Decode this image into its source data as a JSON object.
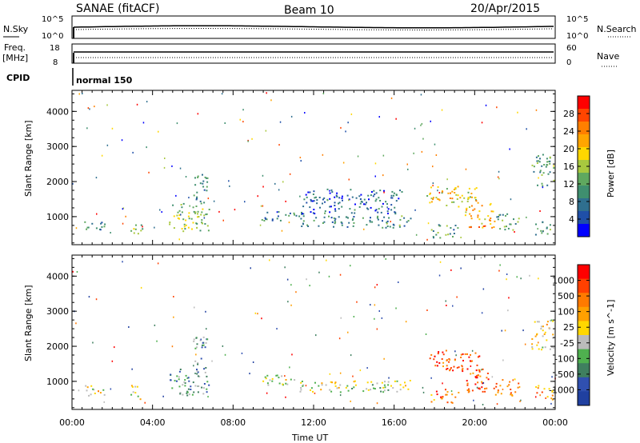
{
  "header": {
    "station": "SANAE (fitACF)",
    "beam": "Beam 10",
    "date": "20/Apr/2015"
  },
  "panels": {
    "noise": {
      "left_label": "N.Sky",
      "right_label": "N.Search",
      "left_ticks": [
        "10^5",
        "10^0"
      ],
      "right_ticks": [
        "10^5",
        "10^0"
      ]
    },
    "freq": {
      "left_label_1": "Freq.",
      "left_label_2": "[MHz]",
      "right_label": "Nave",
      "left_ticks": [
        "18",
        "8"
      ],
      "right_ticks": [
        "60",
        "0"
      ]
    },
    "cpid": {
      "label": "CPID",
      "mode": "normal 150"
    }
  },
  "axes": {
    "xlabel": "Time UT",
    "ylabel": "Slant Range [km]"
  },
  "colorbars": {
    "power": {
      "label": "Power [dB]",
      "ticks": [
        "28",
        "24",
        "20",
        "16",
        "12",
        "8",
        "4"
      ],
      "colors": [
        "#0000ff",
        "#1f4fa8",
        "#2f6f8f",
        "#3f8f6f",
        "#5fa85f",
        "#a8c83f",
        "#ffd700",
        "#ffa500",
        "#ff7f00",
        "#ff4500",
        "#ff0000"
      ]
    },
    "velocity": {
      "label": "Velocity [m s^-1]",
      "ticks": [
        "1000",
        "500",
        "100",
        "25",
        "-25",
        "-100",
        "-500",
        "-1000"
      ],
      "colors": [
        "#2040a0",
        "#3050b0",
        "#3f7f5f",
        "#4fb04f",
        "#bbbbbb",
        "#ffd700",
        "#ffa000",
        "#ff7a00",
        "#ff4000",
        "#ff0000"
      ]
    }
  },
  "chart_data": [
    {
      "type": "heatmap",
      "name": "Power",
      "title": "SANAE (fitACF)",
      "xlabel": "Time UT",
      "ylabel": "Slant Range [km]",
      "x_ticks": [
        "00:00",
        "04:00",
        "08:00",
        "12:00",
        "16:00",
        "20:00",
        "00:00"
      ],
      "y_ticks": [
        1000,
        2000,
        3000,
        4000
      ],
      "xlim_hours": [
        0,
        24
      ],
      "ylim_km": [
        200,
        4600
      ],
      "colorbar_label": "Power [dB]",
      "colorbar_ticks": [
        4,
        8,
        12,
        16,
        20,
        24,
        28
      ],
      "clim": [
        0,
        30
      ],
      "echo_regions": [
        {
          "t0": 0.4,
          "t1": 1.6,
          "r0": 600,
          "r1": 900,
          "level": 0.3
        },
        {
          "t0": 2.9,
          "t1": 3.5,
          "r0": 500,
          "r1": 900,
          "level": 0.45
        },
        {
          "t0": 4.8,
          "t1": 6.8,
          "r0": 600,
          "r1": 1400,
          "level": 0.45
        },
        {
          "t0": 6.0,
          "t1": 6.7,
          "r0": 1400,
          "r1": 2300,
          "level": 0.3
        },
        {
          "t0": 9.4,
          "t1": 11.4,
          "r0": 900,
          "r1": 1200,
          "level": 0.25
        },
        {
          "t0": 11.3,
          "t1": 16.8,
          "r0": 700,
          "r1": 1050,
          "level": 0.3
        },
        {
          "t0": 11.4,
          "t1": 16.4,
          "r0": 1100,
          "r1": 1800,
          "level": 0.2
        },
        {
          "t0": 17.6,
          "t1": 20.2,
          "r0": 1300,
          "r1": 1900,
          "level": 0.6
        },
        {
          "t0": 17.8,
          "t1": 19.2,
          "r0": 400,
          "r1": 800,
          "level": 0.35
        },
        {
          "t0": 19.5,
          "t1": 21.0,
          "r0": 700,
          "r1": 1400,
          "level": 0.7
        },
        {
          "t0": 21.0,
          "t1": 22.2,
          "r0": 600,
          "r1": 1100,
          "level": 0.35
        },
        {
          "t0": 22.8,
          "t1": 23.9,
          "r0": 1900,
          "r1": 2800,
          "level": 0.35
        },
        {
          "t0": 23.0,
          "t1": 23.9,
          "r0": 500,
          "r1": 900,
          "level": 0.35
        }
      ]
    },
    {
      "type": "heatmap",
      "name": "Velocity",
      "xlabel": "Time UT",
      "ylabel": "Slant Range [km]",
      "x_ticks": [
        "00:00",
        "04:00",
        "08:00",
        "12:00",
        "16:00",
        "20:00",
        "00:00"
      ],
      "y_ticks": [
        1000,
        2000,
        3000,
        4000
      ],
      "xlim_hours": [
        0,
        24
      ],
      "ylim_km": [
        200,
        4600
      ],
      "colorbar_label": "Velocity [m s^-1]",
      "colorbar_ticks": [
        1000,
        500,
        100,
        25,
        -25,
        -100,
        -500,
        -1000
      ],
      "echo_regions": [
        {
          "t0": 0.4,
          "t1": 1.6,
          "r0": 600,
          "r1": 900,
          "level": 0.55
        },
        {
          "t0": 2.9,
          "t1": 3.5,
          "r0": 500,
          "r1": 900,
          "level": 0.5
        },
        {
          "t0": 4.8,
          "t1": 6.8,
          "r0": 600,
          "r1": 1400,
          "level": 0.3
        },
        {
          "t0": 6.0,
          "t1": 6.7,
          "r0": 1400,
          "r1": 2300,
          "level": 0.3
        },
        {
          "t0": 9.4,
          "t1": 11.4,
          "r0": 900,
          "r1": 1200,
          "level": 0.45
        },
        {
          "t0": 11.3,
          "t1": 16.8,
          "r0": 700,
          "r1": 1050,
          "level": 0.45
        },
        {
          "t0": 17.6,
          "t1": 20.2,
          "r0": 1300,
          "r1": 1900,
          "level": 0.85
        },
        {
          "t0": 17.8,
          "t1": 19.2,
          "r0": 400,
          "r1": 800,
          "level": 0.75
        },
        {
          "t0": 19.5,
          "t1": 21.0,
          "r0": 700,
          "r1": 1400,
          "level": 0.8
        },
        {
          "t0": 21.0,
          "t1": 22.2,
          "r0": 600,
          "r1": 1100,
          "level": 0.75
        },
        {
          "t0": 22.8,
          "t1": 23.9,
          "r0": 1900,
          "r1": 2800,
          "level": 0.55
        },
        {
          "t0": 23.0,
          "t1": 23.9,
          "r0": 500,
          "r1": 900,
          "level": 0.7
        }
      ]
    }
  ]
}
